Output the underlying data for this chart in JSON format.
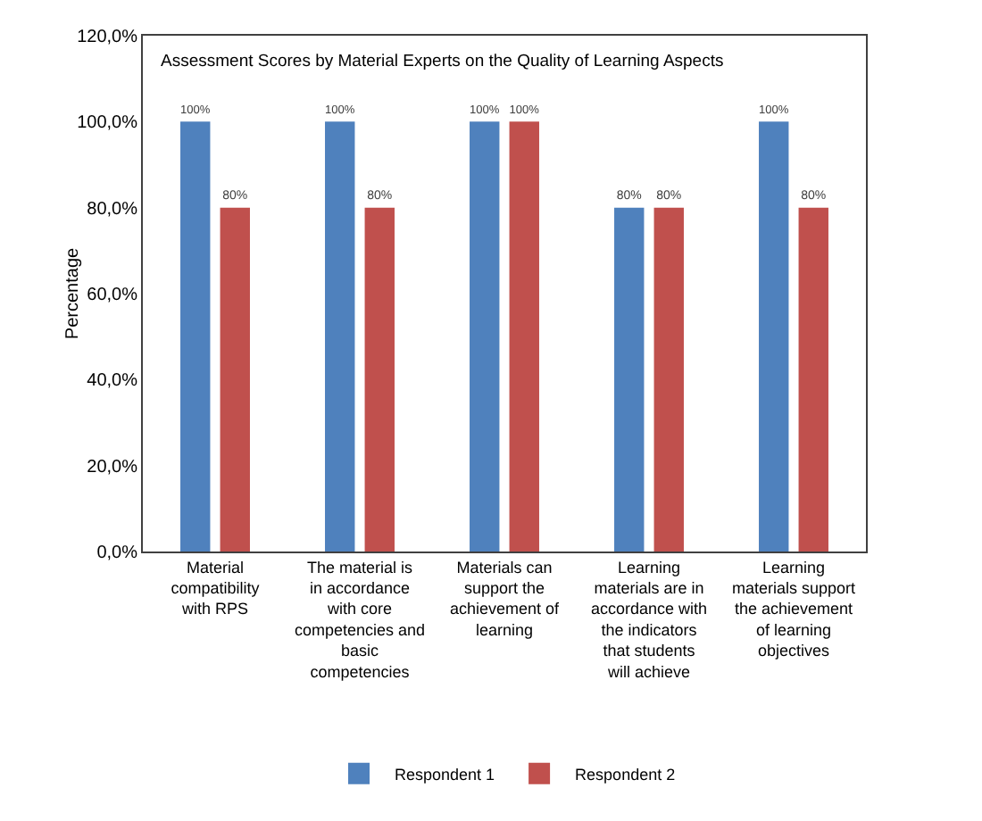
{
  "chart_data": {
    "type": "bar",
    "title": "Assessment Scores by Material Experts on the Quality of Learning Aspects",
    "ylabel": "Percentage",
    "categories": [
      "Material compatibility with RPS",
      "The material is in accordance with core competencies and basic competencies",
      "Materials can support the achievement of learning",
      "Learning materials are in accordance with the indicators that students will achieve",
      "Learning materials support the achievement of learning objectives"
    ],
    "series": [
      {
        "name": "Respondent 1",
        "color": "#4f81bd",
        "values": [
          100,
          100,
          100,
          80,
          100
        ],
        "value_labels": [
          "100%",
          "100%",
          "100%",
          "80%",
          "100%"
        ]
      },
      {
        "name": "Respondent 2",
        "color": "#c0504d",
        "values": [
          80,
          80,
          100,
          80,
          80
        ],
        "value_labels": [
          "80%",
          "80%",
          "100%",
          "80%",
          "80%"
        ]
      }
    ],
    "ylim": [
      0,
      120
    ],
    "yticks": [
      {
        "value": 0,
        "label": "0,0%"
      },
      {
        "value": 20,
        "label": "20,0%"
      },
      {
        "value": 40,
        "label": "40,0%"
      },
      {
        "value": 60,
        "label": "60,0%"
      },
      {
        "value": 80,
        "label": "80,0%"
      },
      {
        "value": 100,
        "label": "100,0%"
      },
      {
        "value": 120,
        "label": "120,0%"
      }
    ],
    "grid": false,
    "legend": "bottom"
  }
}
